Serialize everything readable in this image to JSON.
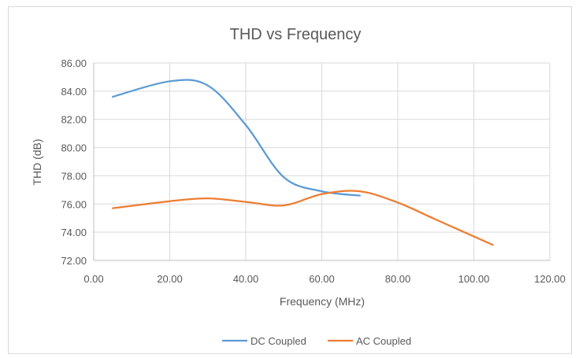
{
  "chart_data": {
    "type": "line",
    "title": "THD vs Frequency",
    "xlabel": "Frequency (MHz)",
    "ylabel": "THD (dB)",
    "xlim": [
      0,
      120
    ],
    "ylim": [
      72,
      86
    ],
    "x_ticks": [
      0,
      20,
      40,
      60,
      80,
      100,
      120
    ],
    "y_ticks": [
      72,
      74,
      76,
      78,
      80,
      82,
      84,
      86
    ],
    "x_tick_labels": [
      "0.00",
      "20.00",
      "40.00",
      "60.00",
      "80.00",
      "100.00",
      "120.00"
    ],
    "y_tick_labels": [
      "72.00",
      "74.00",
      "76.00",
      "78.00",
      "80.00",
      "82.00",
      "84.00",
      "86.00"
    ],
    "grid": true,
    "legend_position": "bottom",
    "series": [
      {
        "name": "DC Coupled",
        "color": "#5b9bd5",
        "x": [
          5,
          20,
          30,
          40,
          50,
          60,
          70
        ],
        "y": [
          83.6,
          84.7,
          84.4,
          81.6,
          77.9,
          76.9,
          76.6
        ]
      },
      {
        "name": "AC Coupled",
        "color": "#ed7d31",
        "x": [
          5,
          20,
          30,
          40,
          50,
          60,
          70,
          80,
          90,
          105
        ],
        "y": [
          75.7,
          76.2,
          76.4,
          76.15,
          75.9,
          76.7,
          76.9,
          76.1,
          74.9,
          73.1
        ]
      }
    ]
  }
}
